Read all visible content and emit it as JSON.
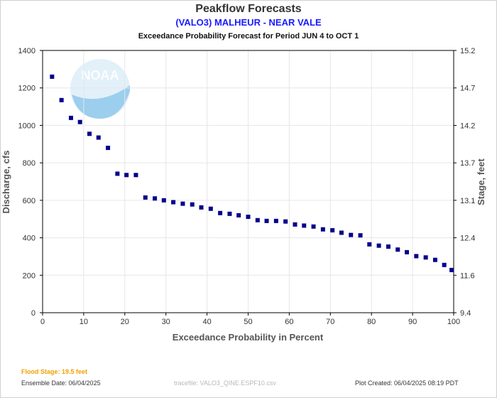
{
  "chart_data": {
    "type": "scatter",
    "title": "Peakflow Forecasts",
    "subtitle": "(VALO3) MALHEUR - NEAR VALE",
    "subtitle2": "Exceedance Probability Forecast for Period JUN 4 to OCT 1",
    "xlabel": "Exceedance Probability in Percent",
    "ylabel": "Discharge, cfs",
    "ylabel_right": "Stage, feet",
    "xlim": [
      0,
      100
    ],
    "ylim": [
      0,
      1400
    ],
    "xticks": [
      "0",
      "10",
      "20",
      "30",
      "40",
      "50",
      "60",
      "70",
      "80",
      "90",
      "100"
    ],
    "yticks": [
      "0",
      "200",
      "400",
      "600",
      "800",
      "1000",
      "1200",
      "1400"
    ],
    "yticks_right": [
      "9.4",
      "11.6",
      "12.4",
      "13.1",
      "13.7",
      "14.2",
      "14.7",
      "15.2"
    ],
    "grid": true,
    "marker_color": "#00008b",
    "points": [
      {
        "x": 2.3,
        "y": 1260
      },
      {
        "x": 4.6,
        "y": 1135
      },
      {
        "x": 6.9,
        "y": 1040
      },
      {
        "x": 9.1,
        "y": 1018
      },
      {
        "x": 11.4,
        "y": 955
      },
      {
        "x": 13.6,
        "y": 935
      },
      {
        "x": 15.9,
        "y": 880
      },
      {
        "x": 18.2,
        "y": 742
      },
      {
        "x": 20.4,
        "y": 735
      },
      {
        "x": 22.7,
        "y": 735
      },
      {
        "x": 25.0,
        "y": 615
      },
      {
        "x": 27.3,
        "y": 610
      },
      {
        "x": 29.5,
        "y": 600
      },
      {
        "x": 31.8,
        "y": 590
      },
      {
        "x": 34.1,
        "y": 582
      },
      {
        "x": 36.4,
        "y": 578
      },
      {
        "x": 38.6,
        "y": 562
      },
      {
        "x": 40.9,
        "y": 555
      },
      {
        "x": 43.2,
        "y": 532
      },
      {
        "x": 45.5,
        "y": 528
      },
      {
        "x": 47.7,
        "y": 520
      },
      {
        "x": 50.0,
        "y": 512
      },
      {
        "x": 52.3,
        "y": 494
      },
      {
        "x": 54.5,
        "y": 490
      },
      {
        "x": 56.8,
        "y": 490
      },
      {
        "x": 59.1,
        "y": 487
      },
      {
        "x": 61.4,
        "y": 471
      },
      {
        "x": 63.6,
        "y": 465
      },
      {
        "x": 65.9,
        "y": 460
      },
      {
        "x": 68.2,
        "y": 445
      },
      {
        "x": 70.5,
        "y": 440
      },
      {
        "x": 72.7,
        "y": 427
      },
      {
        "x": 75.0,
        "y": 415
      },
      {
        "x": 77.3,
        "y": 413
      },
      {
        "x": 79.5,
        "y": 365
      },
      {
        "x": 81.8,
        "y": 358
      },
      {
        "x": 84.1,
        "y": 353
      },
      {
        "x": 86.4,
        "y": 337
      },
      {
        "x": 88.6,
        "y": 323
      },
      {
        "x": 90.9,
        "y": 302
      },
      {
        "x": 93.2,
        "y": 295
      },
      {
        "x": 95.5,
        "y": 282
      },
      {
        "x": 97.7,
        "y": 255
      },
      {
        "x": 99.5,
        "y": 228
      }
    ]
  },
  "footer": {
    "flood_stage": "Flood Stage: 19.5 feet",
    "ensemble_date": "Ensemble Date: 06/04/2025",
    "tracefile": "tracefile: VALO3_QINE.ESPF10.csv",
    "plot_created": "Plot Created: 06/04/2025 08:19 PDT"
  },
  "logo": {
    "text": "NOAA",
    "color": "#1a8fd8"
  }
}
